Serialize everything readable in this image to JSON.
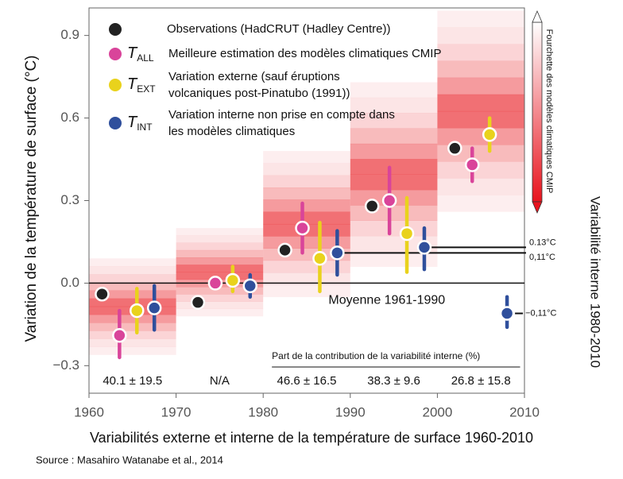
{
  "chart_data": {
    "type": "scatter",
    "y_label": "Variation de la température de surface (°C)",
    "x_label": "Variabilités externe et interne de la température de surface 1960-2010",
    "source": "Source : Masahiro Watanabe et al., 2014",
    "xlim": [
      1960,
      2010
    ],
    "xticks": [
      1960,
      1970,
      1980,
      1990,
      2000,
      2010
    ],
    "ylim": [
      -0.4,
      1.0
    ],
    "yticks": [
      {
        "value": -0.3,
        "label": "−0.3"
      },
      {
        "value": 0,
        "label": "0.0"
      },
      {
        "value": 0.3,
        "label": "0.3"
      },
      {
        "value": 0.6,
        "label": "0.6"
      },
      {
        "value": 0.9,
        "label": "0.9"
      }
    ],
    "series": [
      {
        "name": "Observations (HadCRUT (Hadley Centre))",
        "color": "#222222",
        "x": [
          1961.5,
          1972.5,
          1982.5,
          1992.5,
          2002
        ],
        "values": [
          -0.04,
          -0.07,
          0.12,
          0.28,
          0.49
        ]
      },
      {
        "name": "Meilleure estimation des modèles climatiques CMIP",
        "symbol": {
          "main": "T",
          "sub": "ALL"
        },
        "color": "#d9449a",
        "x": [
          1963.5,
          1974.5,
          1984.5,
          1994.5,
          2004
        ],
        "values": [
          -0.19,
          0.0,
          0.2,
          0.3,
          0.43
        ],
        "lo": [
          -0.27,
          0.0,
          0.11,
          0.18,
          0.37
        ],
        "hi": [
          -0.1,
          0.0,
          0.29,
          0.42,
          0.49
        ]
      },
      {
        "name": "Variation externe (sauf éruptions volcaniques post-Pinatubo (1991))",
        "symbol": {
          "main": "T",
          "sub": "EXT"
        },
        "color": "#e9d21c",
        "x": [
          1965.5,
          1976.5,
          1986.5,
          1996.5,
          2006
        ],
        "values": [
          -0.1,
          0.01,
          0.09,
          0.18,
          0.54
        ],
        "lo": [
          -0.18,
          -0.03,
          -0.03,
          0.04,
          0.48
        ],
        "hi": [
          -0.02,
          0.06,
          0.22,
          0.31,
          0.6
        ]
      },
      {
        "name": "Variation interne non prise en compte dans les modèles climatiques",
        "symbol": {
          "main": "T",
          "sub": "INT"
        },
        "color": "#2f4f9c",
        "x": [
          1967.5,
          1978.5,
          1988.5,
          1998.5
        ],
        "values": [
          -0.09,
          -0.01,
          0.11,
          0.13
        ],
        "lo": [
          -0.17,
          -0.05,
          0.03,
          0.05
        ],
        "hi": [
          -0.01,
          0.03,
          0.19,
          0.2
        ]
      }
    ],
    "model_ranges": {
      "x": [
        1960,
        1970,
        1980,
        1990,
        2000
      ],
      "lo": [
        -0.26,
        -0.12,
        -0.05,
        0.06,
        0.26
      ],
      "hi": [
        0.09,
        0.2,
        0.48,
        0.73,
        0.99
      ]
    },
    "colorbar_label": "Fourchette des modèles climatiques CMIP",
    "reference": {
      "value": 0,
      "label": "Moyenne 1961-1990"
    },
    "internal_1980_2010": {
      "title": "Variabilité interne 1980-2010",
      "x": 2008,
      "value": -0.11,
      "lo": -0.16,
      "hi": -0.05,
      "label": "−0,11°C"
    },
    "levels": [
      {
        "value": 0.13,
        "label": "0.13°C"
      },
      {
        "value": 0.11,
        "label": "0,11°C"
      }
    ],
    "contribution_title": "Part de la contribution de la variabilité interne (%)",
    "contributions": [
      "40.1 ± 19.5",
      "N/A",
      "46.6 ± 16.5",
      "38.3 ± 9.6",
      "26.8 ± 15.8"
    ]
  }
}
